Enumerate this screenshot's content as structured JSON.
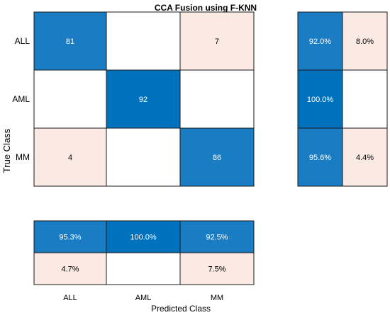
{
  "chart_data": {
    "type": "heatmap",
    "title": "CCA Fusion using F-KNN",
    "xlabel": "Predicted Class",
    "ylabel": "True Class",
    "classes": [
      "ALL",
      "AML",
      "MM"
    ],
    "matrix": [
      [
        81,
        0,
        7
      ],
      [
        0,
        92,
        0
      ],
      [
        4,
        0,
        86
      ]
    ],
    "row_summary": [
      [
        "92.0%",
        "8.0%"
      ],
      [
        "100.0%",
        ""
      ],
      [
        "95.6%",
        "4.4%"
      ]
    ],
    "column_summary": [
      [
        "95.3%",
        "100.0%",
        "92.5%"
      ],
      [
        "4.7%",
        "",
        "7.5%"
      ]
    ],
    "colors": {
      "correct_dark": "#0072bd",
      "correct_mid": "#1a7cc2",
      "incorrect_light": "#fbeae4",
      "empty": "#ffffff",
      "text_on_dark": "#ffffff",
      "text_on_light": "#000000"
    }
  }
}
